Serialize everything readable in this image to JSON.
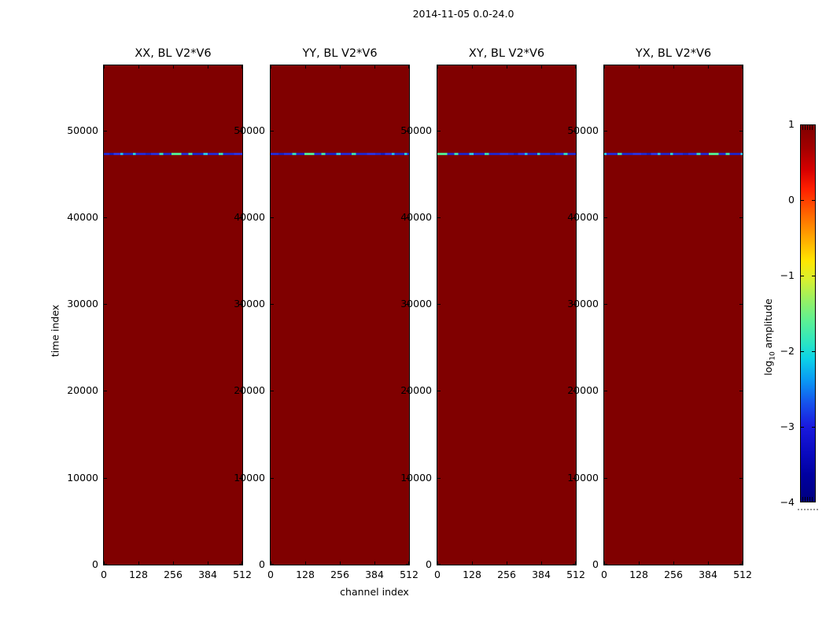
{
  "figure": {
    "title": "2014-11-05 0.0-24.0",
    "xlabel": "channel index",
    "ylabel": "time index"
  },
  "panels": [
    {
      "title": "XX, BL V2*V6"
    },
    {
      "title": "YY, BL V2*V6"
    },
    {
      "title": "XY, BL V2*V6"
    },
    {
      "title": "YX, BL V2*V6"
    }
  ],
  "axes": {
    "x_tick_labels": [
      "0",
      "128",
      "256",
      "384",
      "512"
    ],
    "y_tick_labels": [
      "0",
      "10000",
      "20000",
      "30000",
      "40000",
      "50000"
    ]
  },
  "colorbar": {
    "label_prefix": "log",
    "label_sub": "10",
    "label_suffix": " amplitude",
    "tick_labels": [
      "1",
      "0",
      "−1",
      "−2",
      "−3",
      "−4"
    ]
  },
  "colors": {
    "panel_fill": "#800000",
    "flag_row_blue": "#2626c4",
    "colormap": "jet"
  },
  "chart_data": {
    "type": "heatmap",
    "title": "2014-11-05 0.0-24.0",
    "layout": "4 side-by-side heatmap panels sharing axes, plus vertical colorbar at right",
    "panels": [
      {
        "title": "XX, BL V2*V6"
      },
      {
        "title": "YY, BL V2*V6"
      },
      {
        "title": "XY, BL V2*V6"
      },
      {
        "title": "YX, BL V2*V6"
      }
    ],
    "x": {
      "label": "channel index",
      "min": 0,
      "max": 512,
      "ticks": [
        0,
        128,
        256,
        384,
        512
      ]
    },
    "y": {
      "label": "time index",
      "min": 0,
      "max": 57500,
      "ticks": [
        0,
        10000,
        20000,
        30000,
        40000,
        50000
      ]
    },
    "color_axis": {
      "label": "log10 amplitude",
      "min": -4,
      "max": 1,
      "ticks": [
        1,
        0,
        -1,
        -2,
        -3,
        -4
      ],
      "colormap": "jet"
    },
    "values_summary": "All four panels are uniformly saturated at log10 amplitude ~ 1 (dark red) over all channels and times",
    "anomaly_rows": [
      {
        "time_index": 47300,
        "log10_amplitude_range": [
          -4,
          -1.5
        ],
        "extent": "all channels, all four panels",
        "appearance": "thin horizontal blue line with cyan/green segments"
      }
    ],
    "grid": false,
    "legend": false
  }
}
